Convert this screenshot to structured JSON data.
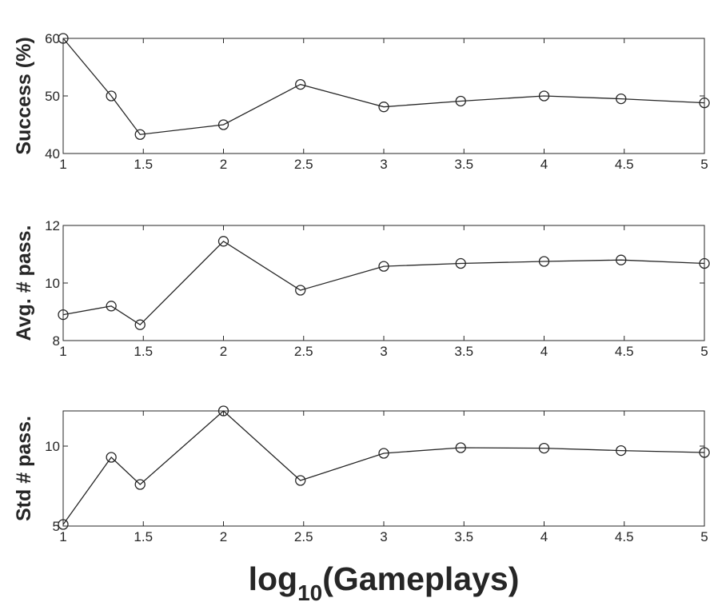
{
  "figure": {
    "xlabel_main": "log",
    "xlabel_sub": "10",
    "xlabel_rest": "(Gameplays)"
  },
  "chart_data": [
    {
      "type": "line",
      "ylabel": "Success (%)",
      "xlim": [
        1,
        5
      ],
      "ylim": [
        40,
        60
      ],
      "xticks": [
        1,
        1.5,
        2,
        2.5,
        3,
        3.5,
        4,
        4.5,
        5
      ],
      "xtick_labels": [
        "1",
        "1.5",
        "2",
        "2.5",
        "3",
        "3.5",
        "4",
        "4.5",
        "5"
      ],
      "yticks": [
        40,
        50,
        60
      ],
      "ytick_labels": [
        "40",
        "50",
        "60"
      ],
      "x": [
        1,
        1.3,
        1.48,
        2,
        2.48,
        3,
        3.48,
        4,
        4.48,
        5
      ],
      "y": [
        60,
        50,
        43.3,
        45,
        52,
        48.1,
        49.1,
        50,
        49.5,
        48.8
      ],
      "marker": "circle",
      "color": "#262626"
    },
    {
      "type": "line",
      "ylabel": "Avg. # pass.",
      "xlim": [
        1,
        5
      ],
      "ylim": [
        8,
        12
      ],
      "xticks": [
        1,
        1.5,
        2,
        2.5,
        3,
        3.5,
        4,
        4.5,
        5
      ],
      "xtick_labels": [
        "1",
        "1.5",
        "2",
        "2.5",
        "3",
        "3.5",
        "4",
        "4.5",
        "5"
      ],
      "yticks": [
        8,
        10,
        12
      ],
      "ytick_labels": [
        "8",
        "10",
        "12"
      ],
      "x": [
        1,
        1.3,
        1.48,
        2,
        2.48,
        3,
        3.48,
        4,
        4.48,
        5
      ],
      "y": [
        8.9,
        9.2,
        8.55,
        11.45,
        9.75,
        10.58,
        10.68,
        10.75,
        10.8,
        10.68
      ],
      "marker": "circle",
      "color": "#262626"
    },
    {
      "type": "line",
      "ylabel": "Std # pass.",
      "xlim": [
        1,
        5
      ],
      "ylim": [
        5,
        12.2
      ],
      "xticks": [
        1,
        1.5,
        2,
        2.5,
        3,
        3.5,
        4,
        4.5,
        5
      ],
      "xtick_labels": [
        "1",
        "1.5",
        "2",
        "2.5",
        "3",
        "3.5",
        "4",
        "4.5",
        "5"
      ],
      "yticks": [
        5,
        10
      ],
      "ytick_labels": [
        "5",
        "10"
      ],
      "x": [
        1,
        1.3,
        1.48,
        2,
        2.48,
        3,
        3.48,
        4,
        4.48,
        5
      ],
      "y": [
        5.1,
        9.3,
        7.6,
        12.2,
        7.85,
        9.55,
        9.9,
        9.87,
        9.72,
        9.6
      ],
      "marker": "circle",
      "color": "#262626"
    }
  ]
}
